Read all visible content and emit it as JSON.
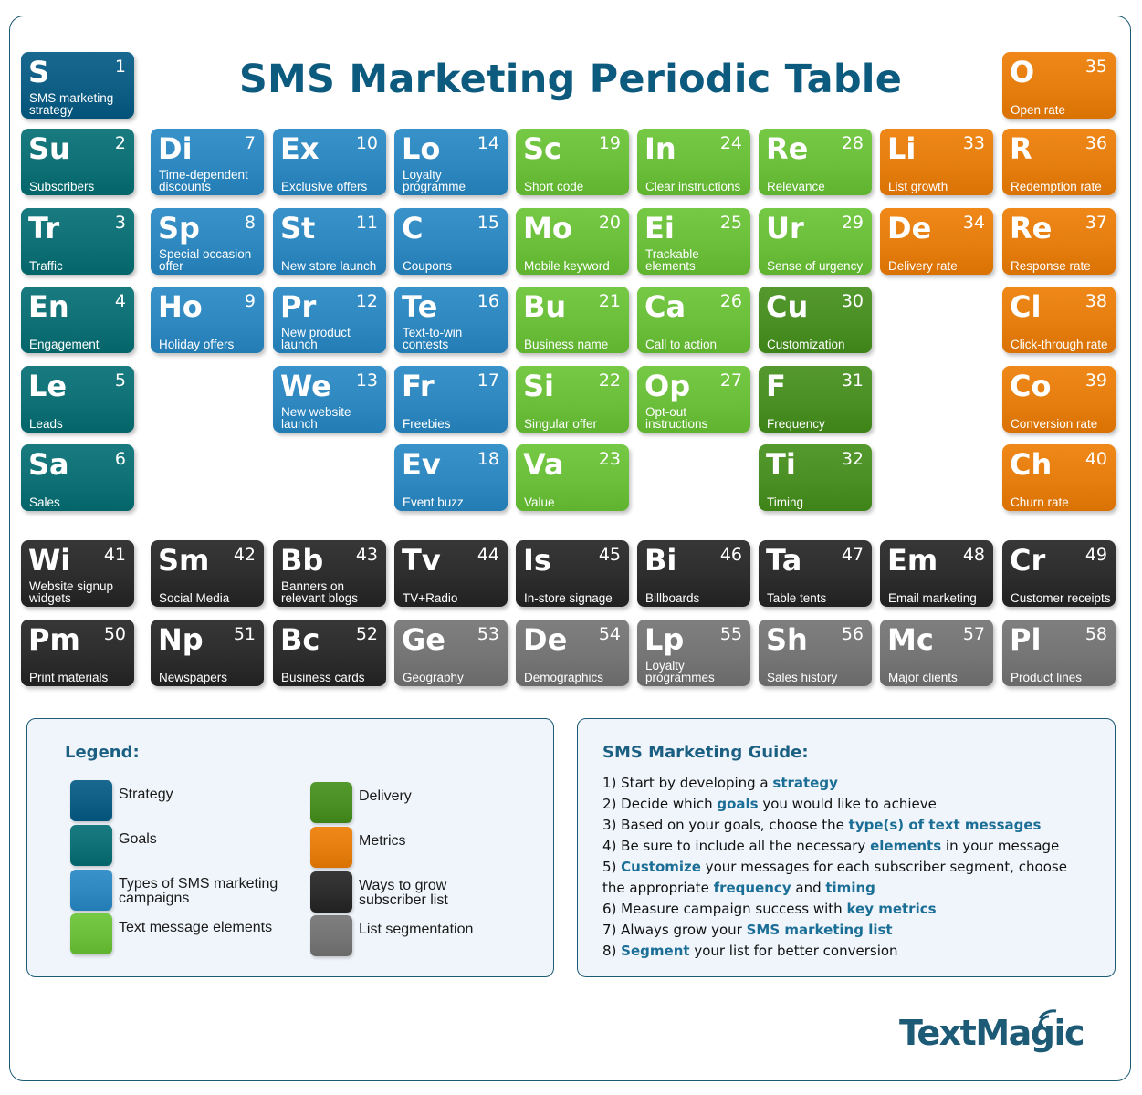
{
  "title": "SMS Marketing Periodic Table",
  "colors": {
    "strategy": "#0f5e85",
    "goals": "#0f7175",
    "campaigns": "#2f88c0",
    "elements": "#6bbf3b",
    "delivery": "#4a8f24",
    "metrics": "#e57e0f",
    "grow": "#2d2d2d",
    "segmentation": "#757575"
  },
  "tiles": [
    {
      "sym": "S",
      "num": "1",
      "name": "SMS marketing strategy",
      "cat": "strategy",
      "col": 0,
      "row": 0
    },
    {
      "sym": "Su",
      "num": "2",
      "name": "Subscribers",
      "cat": "goals",
      "col": 0,
      "row": 1
    },
    {
      "sym": "Tr",
      "num": "3",
      "name": "Traffic",
      "cat": "goals",
      "col": 0,
      "row": 2
    },
    {
      "sym": "En",
      "num": "4",
      "name": "Engagement",
      "cat": "goals",
      "col": 0,
      "row": 3
    },
    {
      "sym": "Le",
      "num": "5",
      "name": "Leads",
      "cat": "goals",
      "col": 0,
      "row": 4
    },
    {
      "sym": "Sa",
      "num": "6",
      "name": "Sales",
      "cat": "goals",
      "col": 0,
      "row": 5
    },
    {
      "sym": "Di",
      "num": "7",
      "name": "Time-dependent discounts",
      "cat": "campaigns",
      "col": 1,
      "row": 1
    },
    {
      "sym": "Sp",
      "num": "8",
      "name": "Special occasion offer",
      "cat": "campaigns",
      "col": 1,
      "row": 2
    },
    {
      "sym": "Ho",
      "num": "9",
      "name": "Holiday offers",
      "cat": "campaigns",
      "col": 1,
      "row": 3
    },
    {
      "sym": "Ex",
      "num": "10",
      "name": "Exclusive offers",
      "cat": "campaigns",
      "col": 2,
      "row": 1
    },
    {
      "sym": "St",
      "num": "11",
      "name": "New store launch",
      "cat": "campaigns",
      "col": 2,
      "row": 2
    },
    {
      "sym": "Pr",
      "num": "12",
      "name": "New product launch",
      "cat": "campaigns",
      "col": 2,
      "row": 3
    },
    {
      "sym": "We",
      "num": "13",
      "name": "New website launch",
      "cat": "campaigns",
      "col": 2,
      "row": 4
    },
    {
      "sym": "Lo",
      "num": "14",
      "name": "Loyalty programme",
      "cat": "campaigns",
      "col": 3,
      "row": 1
    },
    {
      "sym": "C",
      "num": "15",
      "name": "Coupons",
      "cat": "campaigns",
      "col": 3,
      "row": 2
    },
    {
      "sym": "Te",
      "num": "16",
      "name": "Text-to-win contests",
      "cat": "campaigns",
      "col": 3,
      "row": 3
    },
    {
      "sym": "Fr",
      "num": "17",
      "name": "Freebies",
      "cat": "campaigns",
      "col": 3,
      "row": 4
    },
    {
      "sym": "Ev",
      "num": "18",
      "name": "Event buzz",
      "cat": "campaigns",
      "col": 3,
      "row": 5
    },
    {
      "sym": "Sc",
      "num": "19",
      "name": "Short code",
      "cat": "elements",
      "col": 4,
      "row": 1
    },
    {
      "sym": "Mo",
      "num": "20",
      "name": "Mobile keyword",
      "cat": "elements",
      "col": 4,
      "row": 2
    },
    {
      "sym": "Bu",
      "num": "21",
      "name": "Business name",
      "cat": "elements",
      "col": 4,
      "row": 3
    },
    {
      "sym": "Si",
      "num": "22",
      "name": "Singular offer",
      "cat": "elements",
      "col": 4,
      "row": 4
    },
    {
      "sym": "Va",
      "num": "23",
      "name": "Value",
      "cat": "elements",
      "col": 4,
      "row": 5
    },
    {
      "sym": "In",
      "num": "24",
      "name": "Clear instructions",
      "cat": "elements",
      "col": 5,
      "row": 1
    },
    {
      "sym": "Ei",
      "num": "25",
      "name": "Trackable elements",
      "cat": "elements",
      "col": 5,
      "row": 2
    },
    {
      "sym": "Ca",
      "num": "26",
      "name": "Call to action",
      "cat": "elements",
      "col": 5,
      "row": 3
    },
    {
      "sym": "Op",
      "num": "27",
      "name": "Opt-out instructions",
      "cat": "elements",
      "col": 5,
      "row": 4
    },
    {
      "sym": "Re",
      "num": "28",
      "name": "Relevance",
      "cat": "elements",
      "col": 6,
      "row": 1
    },
    {
      "sym": "Ur",
      "num": "29",
      "name": "Sense of urgency",
      "cat": "elements",
      "col": 6,
      "row": 2
    },
    {
      "sym": "Cu",
      "num": "30",
      "name": "Customization",
      "cat": "delivery",
      "col": 6,
      "row": 3
    },
    {
      "sym": "F",
      "num": "31",
      "name": "Frequency",
      "cat": "delivery",
      "col": 6,
      "row": 4
    },
    {
      "sym": "Ti",
      "num": "32",
      "name": "Timing",
      "cat": "delivery",
      "col": 6,
      "row": 5
    },
    {
      "sym": "Li",
      "num": "33",
      "name": "List growth",
      "cat": "metrics",
      "col": 7,
      "row": 1
    },
    {
      "sym": "De",
      "num": "34",
      "name": "Delivery rate",
      "cat": "metrics",
      "col": 7,
      "row": 2
    },
    {
      "sym": "O",
      "num": "35",
      "name": "Open rate",
      "cat": "metrics",
      "col": 8,
      "row": 0
    },
    {
      "sym": "R",
      "num": "36",
      "name": "Redemption rate",
      "cat": "metrics",
      "col": 8,
      "row": 1
    },
    {
      "sym": "Re",
      "num": "37",
      "name": "Response rate",
      "cat": "metrics",
      "col": 8,
      "row": 2
    },
    {
      "sym": "Cl",
      "num": "38",
      "name": "Click-through rate",
      "cat": "metrics",
      "col": 8,
      "row": 3
    },
    {
      "sym": "Co",
      "num": "39",
      "name": "Conversion rate",
      "cat": "metrics",
      "col": 8,
      "row": 4
    },
    {
      "sym": "Ch",
      "num": "40",
      "name": "Churn rate",
      "cat": "metrics",
      "col": 8,
      "row": 5
    },
    {
      "sym": "Wi",
      "num": "41",
      "name": "Website signup widgets",
      "cat": "grow",
      "col": 0,
      "row": 6
    },
    {
      "sym": "Sm",
      "num": "42",
      "name": "Social Media",
      "cat": "grow",
      "col": 1,
      "row": 6
    },
    {
      "sym": "Bb",
      "num": "43",
      "name": "Banners on relevant blogs",
      "cat": "grow",
      "col": 2,
      "row": 6
    },
    {
      "sym": "Tv",
      "num": "44",
      "name": "TV+Radio",
      "cat": "grow",
      "col": 3,
      "row": 6
    },
    {
      "sym": "Is",
      "num": "45",
      "name": "In-store signage",
      "cat": "grow",
      "col": 4,
      "row": 6
    },
    {
      "sym": "Bi",
      "num": "46",
      "name": "Billboards",
      "cat": "grow",
      "col": 5,
      "row": 6
    },
    {
      "sym": "Ta",
      "num": "47",
      "name": "Table tents",
      "cat": "grow",
      "col": 6,
      "row": 6
    },
    {
      "sym": "Em",
      "num": "48",
      "name": "Email marketing",
      "cat": "grow",
      "col": 7,
      "row": 6
    },
    {
      "sym": "Cr",
      "num": "49",
      "name": "Customer receipts",
      "cat": "grow",
      "col": 8,
      "row": 6
    },
    {
      "sym": "Pm",
      "num": "50",
      "name": "Print materials",
      "cat": "grow",
      "col": 0,
      "row": 7
    },
    {
      "sym": "Np",
      "num": "51",
      "name": "Newspapers",
      "cat": "grow",
      "col": 1,
      "row": 7
    },
    {
      "sym": "Bc",
      "num": "52",
      "name": "Business cards",
      "cat": "grow",
      "col": 2,
      "row": 7
    },
    {
      "sym": "Ge",
      "num": "53",
      "name": "Geography",
      "cat": "segmentation",
      "col": 3,
      "row": 7
    },
    {
      "sym": "De",
      "num": "54",
      "name": "Demographics",
      "cat": "segmentation",
      "col": 4,
      "row": 7
    },
    {
      "sym": "Lp",
      "num": "55",
      "name": "Loyalty programmes",
      "cat": "segmentation",
      "col": 5,
      "row": 7
    },
    {
      "sym": "Sh",
      "num": "56",
      "name": "Sales history",
      "cat": "segmentation",
      "col": 6,
      "row": 7
    },
    {
      "sym": "Mc",
      "num": "57",
      "name": "Major clients",
      "cat": "segmentation",
      "col": 7,
      "row": 7
    },
    {
      "sym": "Pl",
      "num": "58",
      "name": "Product lines",
      "cat": "segmentation",
      "col": 8,
      "row": 7
    }
  ],
  "legend": {
    "title": "Legend:",
    "items": [
      {
        "label": "Strategy",
        "cat": "strategy"
      },
      {
        "label": "Goals",
        "cat": "goals"
      },
      {
        "label": "Types of SMS marketing campaigns",
        "cat": "campaigns"
      },
      {
        "label": "Text message elements",
        "cat": "elements"
      },
      {
        "label": "Delivery",
        "cat": "delivery"
      },
      {
        "label": "Metrics",
        "cat": "metrics"
      },
      {
        "label": "Ways to grow subscriber list",
        "cat": "grow"
      },
      {
        "label": "List segmentation",
        "cat": "segmentation"
      }
    ]
  },
  "guide": {
    "title": "SMS Marketing Guide:",
    "lines": [
      [
        {
          "t": "1) Start by developing a "
        },
        {
          "t": "strategy",
          "b": true
        }
      ],
      [
        {
          "t": "2) Decide which "
        },
        {
          "t": "goals",
          "b": true
        },
        {
          "t": " you would like to achieve"
        }
      ],
      [
        {
          "t": "3) Based on your goals, choose the "
        },
        {
          "t": "type(s) of text messages",
          "b": true
        }
      ],
      [
        {
          "t": "4) Be sure to include all the necessary "
        },
        {
          "t": "elements",
          "b": true
        },
        {
          "t": " in your message"
        }
      ],
      [
        {
          "t": "5) "
        },
        {
          "t": "Customize",
          "b": true
        },
        {
          "t": " your messages for each subscriber segment, choose"
        }
      ],
      [
        {
          "t": "the  appropriate "
        },
        {
          "t": "frequency",
          "b": true
        },
        {
          "t": " and "
        },
        {
          "t": "timing",
          "b": true
        }
      ],
      [
        {
          "t": "6) Measure campaign success with "
        },
        {
          "t": "key metrics",
          "b": true
        }
      ],
      [
        {
          "t": "7) Always grow your "
        },
        {
          "t": "SMS marketing list",
          "b": true
        }
      ],
      [
        {
          "t": "8) "
        },
        {
          "t": "Segment",
          "b": true
        },
        {
          "t": " your list for better conversion"
        }
      ]
    ]
  },
  "logo": "TextMagic"
}
